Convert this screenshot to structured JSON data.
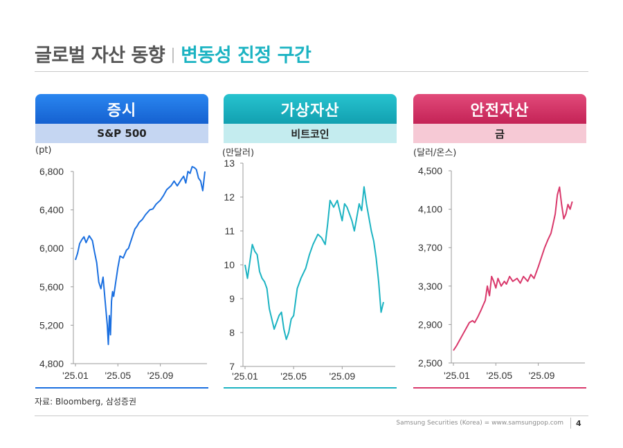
{
  "title": {
    "main": "글로벌 자산 동향",
    "separator": "|",
    "sub": "변동성 진정 구간"
  },
  "colors": {
    "equity": "#1a6fe0",
    "crypto": "#1bb3c2",
    "safe": "#d9386b",
    "equity_sub_bg": "#c5d6f2",
    "crypto_sub_bg": "#c4ecef",
    "safe_sub_bg": "#f6c9d5"
  },
  "source": "자료: Bloomberg, 삼성증권",
  "footer": {
    "company": "Samsung Securities (Korea) = www.samsungpop.com",
    "page": "4"
  },
  "panels": [
    {
      "header": "증시",
      "subheader": "S&P 500",
      "unit": "(pt)"
    },
    {
      "header": "가상자산",
      "subheader": "비트코인",
      "unit": "(만달러)"
    },
    {
      "header": "안전자산",
      "subheader": "금",
      "unit": "(달러/온스)"
    }
  ],
  "chart_data": [
    {
      "type": "line",
      "title": "S&P 500",
      "ylabel": "(pt)",
      "ylim": [
        4800,
        6800
      ],
      "yticks": [
        4800,
        5200,
        5600,
        6000,
        6400,
        6800
      ],
      "ytick_labels": [
        "4,800",
        "5,200",
        "5,600",
        "6,000",
        "6,400",
        "6,800"
      ],
      "xlim": [
        0,
        12.2
      ],
      "xticks": [
        0,
        4,
        8
      ],
      "xtick_labels": [
        "'25.01",
        "'25.05",
        "'25.09"
      ],
      "color": "#1a6fe0",
      "x": [
        0,
        0.2,
        0.4,
        0.6,
        0.8,
        1.0,
        1.3,
        1.6,
        1.8,
        2.0,
        2.2,
        2.4,
        2.6,
        2.8,
        3.0,
        3.1,
        3.2,
        3.3,
        3.4,
        3.5,
        3.6,
        3.8,
        4.0,
        4.2,
        4.5,
        4.8,
        5.0,
        5.3,
        5.6,
        5.8,
        6.0,
        6.3,
        6.6,
        7.0,
        7.3,
        7.6,
        8.0,
        8.3,
        8.6,
        9.0,
        9.3,
        9.6,
        10.0,
        10.2,
        10.4,
        10.6,
        10.8,
        11.0,
        11.2,
        11.4,
        11.6,
        11.8,
        12.0,
        12.2
      ],
      "values": [
        5880,
        5950,
        6050,
        6090,
        6120,
        6060,
        6130,
        6080,
        5960,
        5850,
        5650,
        5580,
        5700,
        5450,
        5200,
        5000,
        5300,
        5100,
        5450,
        5550,
        5500,
        5650,
        5800,
        5920,
        5900,
        5980,
        6000,
        6100,
        6200,
        6230,
        6270,
        6300,
        6350,
        6400,
        6410,
        6460,
        6500,
        6550,
        6610,
        6650,
        6700,
        6650,
        6720,
        6750,
        6680,
        6800,
        6780,
        6850,
        6840,
        6820,
        6730,
        6700,
        6600,
        6800
      ]
    },
    {
      "type": "line",
      "title": "비트코인",
      "ylabel": "(만달러)",
      "ylim": [
        7,
        13
      ],
      "yticks": [
        7,
        8,
        9,
        10,
        11,
        12,
        13
      ],
      "ytick_labels": [
        "7",
        "8",
        "9",
        "10",
        "11",
        "12",
        "13"
      ],
      "xlim": [
        0,
        12.2
      ],
      "xticks": [
        0,
        4,
        8
      ],
      "xtick_labels": [
        "'25.01",
        "'25.05",
        "'25.09"
      ],
      "color": "#1bb3c2",
      "x": [
        0,
        0.2,
        0.4,
        0.6,
        0.8,
        1.0,
        1.2,
        1.4,
        1.6,
        1.8,
        2.0,
        2.2,
        2.4,
        2.6,
        2.8,
        3.0,
        3.2,
        3.4,
        3.6,
        3.8,
        4.0,
        4.3,
        4.6,
        5.0,
        5.3,
        5.6,
        6.0,
        6.3,
        6.6,
        6.8,
        7.0,
        7.3,
        7.6,
        7.8,
        8.0,
        8.2,
        8.4,
        8.6,
        8.8,
        9.0,
        9.2,
        9.4,
        9.6,
        9.8,
        10.0,
        10.2,
        10.4,
        10.6,
        10.8,
        11.0,
        11.2,
        11.4
      ],
      "values": [
        10.0,
        9.6,
        10.1,
        10.6,
        10.4,
        10.3,
        9.8,
        9.6,
        9.5,
        9.3,
        8.7,
        8.4,
        8.1,
        8.3,
        8.5,
        8.6,
        8.1,
        7.8,
        8.0,
        8.4,
        8.5,
        9.3,
        9.6,
        9.9,
        10.3,
        10.6,
        10.9,
        10.8,
        10.6,
        11.2,
        11.9,
        11.7,
        11.9,
        11.6,
        11.3,
        11.8,
        11.7,
        11.5,
        11.3,
        11.0,
        11.4,
        11.8,
        11.6,
        12.3,
        11.8,
        11.4,
        11.0,
        10.7,
        10.2,
        9.5,
        8.6,
        8.9
      ]
    },
    {
      "type": "line",
      "title": "금",
      "ylabel": "(달러/온스)",
      "ylim": [
        2500,
        4500
      ],
      "yticks": [
        2500,
        2900,
        3300,
        3700,
        4100,
        4500
      ],
      "ytick_labels": [
        "2,500",
        "2,900",
        "3,300",
        "3,700",
        "4,100",
        "4,500"
      ],
      "xlim": [
        0,
        12.2
      ],
      "xticks": [
        0,
        4,
        8
      ],
      "xtick_labels": [
        "'25.01",
        "'25.05",
        "'25.09"
      ],
      "color": "#d9386b",
      "x": [
        0,
        0.3,
        0.6,
        0.9,
        1.2,
        1.5,
        1.8,
        2.0,
        2.3,
        2.6,
        2.8,
        3.0,
        3.2,
        3.4,
        3.6,
        3.8,
        4.0,
        4.2,
        4.5,
        4.8,
        5.0,
        5.3,
        5.6,
        6.0,
        6.3,
        6.6,
        7.0,
        7.3,
        7.6,
        8.0,
        8.3,
        8.6,
        8.9,
        9.2,
        9.4,
        9.6,
        9.8,
        10.0,
        10.2,
        10.4,
        10.6,
        10.8,
        11.0,
        11.2
      ],
      "values": [
        2630,
        2680,
        2740,
        2800,
        2860,
        2920,
        2940,
        2920,
        2980,
        3050,
        3100,
        3150,
        3300,
        3200,
        3400,
        3350,
        3280,
        3380,
        3300,
        3350,
        3320,
        3400,
        3350,
        3380,
        3330,
        3400,
        3350,
        3420,
        3380,
        3500,
        3600,
        3700,
        3780,
        3850,
        3950,
        4050,
        4250,
        4330,
        4150,
        4000,
        4050,
        4150,
        4100,
        4180
      ]
    }
  ]
}
